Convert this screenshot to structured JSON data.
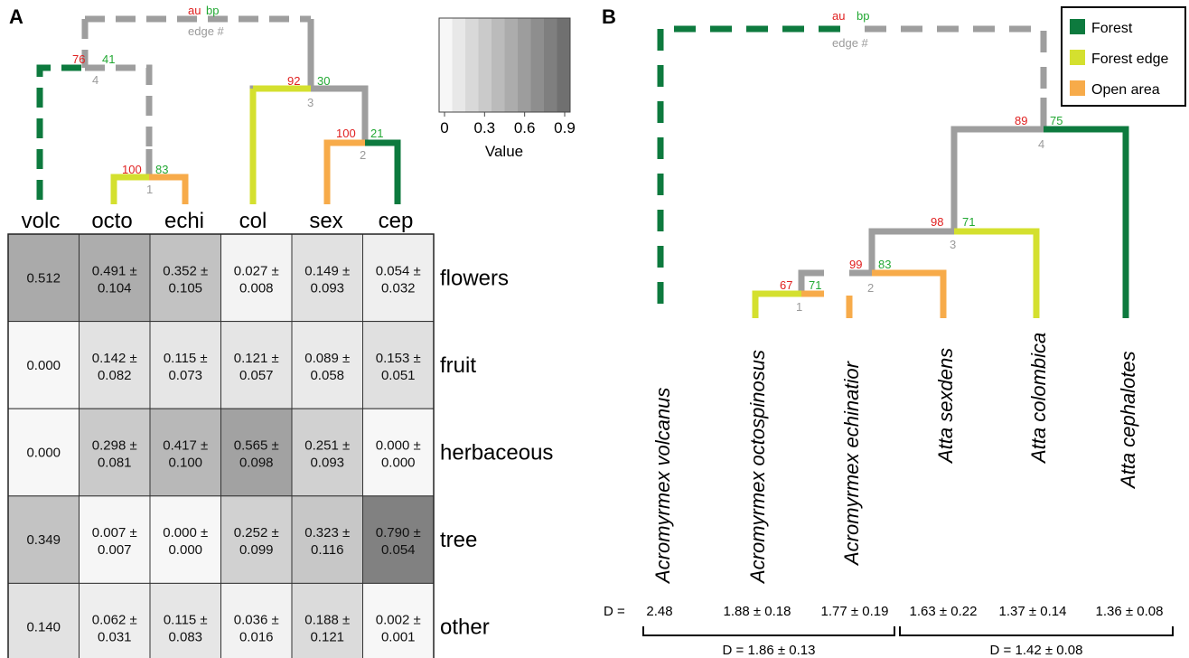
{
  "colors": {
    "forest": "#0d7a3e",
    "forest_edge": "#d4e02f",
    "open_area": "#f7ab4a",
    "unknown": "#9e9e9e",
    "au": "#e02020",
    "bp": "#22a833",
    "edge": "#9a9a9a"
  },
  "panelA": {
    "letter": "A",
    "tips": [
      "volc",
      "octo",
      "echi",
      "col",
      "sex",
      "cep"
    ],
    "header_labels": {
      "au": "au",
      "bp": "bp",
      "edge": "edge #"
    },
    "node_labels": [
      {
        "au": "76",
        "bp": "41",
        "edge": "4"
      },
      {
        "au": "100",
        "bp": "83",
        "edge": "1"
      },
      {
        "au": "92",
        "bp": "30",
        "edge": "3"
      },
      {
        "au": "100",
        "bp": "21",
        "edge": "2"
      }
    ],
    "heatmap": {
      "rows": [
        "flowers",
        "fruit",
        "herbaceous",
        "tree",
        "other"
      ],
      "cells": [
        [
          {
            "mean": "0.512",
            "sd": ""
          },
          {
            "mean": "0.491 ±",
            "sd": "0.104"
          },
          {
            "mean": "0.352 ±",
            "sd": "0.105"
          },
          {
            "mean": "0.027 ±",
            "sd": "0.008"
          },
          {
            "mean": "0.149 ±",
            "sd": "0.093"
          },
          {
            "mean": "0.054 ±",
            "sd": "0.032"
          }
        ],
        [
          {
            "mean": "0.000",
            "sd": ""
          },
          {
            "mean": "0.142 ±",
            "sd": "0.082"
          },
          {
            "mean": "0.115 ±",
            "sd": "0.073"
          },
          {
            "mean": "0.121 ±",
            "sd": "0.057"
          },
          {
            "mean": "0.089 ±",
            "sd": "0.058"
          },
          {
            "mean": "0.153 ±",
            "sd": "0.051"
          }
        ],
        [
          {
            "mean": "0.000",
            "sd": ""
          },
          {
            "mean": "0.298 ±",
            "sd": "0.081"
          },
          {
            "mean": "0.417 ±",
            "sd": "0.100"
          },
          {
            "mean": "0.565 ±",
            "sd": "0.098"
          },
          {
            "mean": "0.251 ±",
            "sd": "0.093"
          },
          {
            "mean": "0.000 ±",
            "sd": "0.000"
          }
        ],
        [
          {
            "mean": "0.349",
            "sd": ""
          },
          {
            "mean": "0.007 ±",
            "sd": "0.007"
          },
          {
            "mean": "0.000 ±",
            "sd": "0.000"
          },
          {
            "mean": "0.252 ±",
            "sd": "0.099"
          },
          {
            "mean": "0.323 ±",
            "sd": "0.116"
          },
          {
            "mean": "0.790 ±",
            "sd": "0.054"
          }
        ],
        [
          {
            "mean": "0.140",
            "sd": ""
          },
          {
            "mean": "0.062 ±",
            "sd": "0.031"
          },
          {
            "mean": "0.115 ±",
            "sd": "0.083"
          },
          {
            "mean": "0.036 ±",
            "sd": "0.016"
          },
          {
            "mean": "0.188 ±",
            "sd": "0.121"
          },
          {
            "mean": "0.002 ±",
            "sd": "0.001"
          }
        ]
      ],
      "values": [
        [
          0.512,
          0.491,
          0.352,
          0.027,
          0.149,
          0.054
        ],
        [
          0.0,
          0.142,
          0.115,
          0.121,
          0.089,
          0.153
        ],
        [
          0.0,
          0.298,
          0.417,
          0.565,
          0.251,
          0.0
        ],
        [
          0.349,
          0.007,
          0.0,
          0.252,
          0.323,
          0.79
        ],
        [
          0.14,
          0.062,
          0.115,
          0.036,
          0.188,
          0.002
        ]
      ]
    },
    "colorbar": {
      "ticks": [
        "0",
        "0.3",
        "0.6",
        "0.9"
      ],
      "label": "Value",
      "min": 0,
      "max": 0.9
    }
  },
  "panelB": {
    "letter": "B",
    "legend": [
      {
        "label": "Forest",
        "color": "#0d7a3e"
      },
      {
        "label": "Forest edge",
        "color": "#d4e02f"
      },
      {
        "label": "Open area",
        "color": "#f7ab4a"
      }
    ],
    "header_labels": {
      "au": "au",
      "bp": "bp",
      "edge": "edge #"
    },
    "node_labels": [
      {
        "au": "89",
        "bp": "75",
        "edge": "4"
      },
      {
        "au": "98",
        "bp": "71",
        "edge": "3"
      },
      {
        "au": "99",
        "bp": "83",
        "edge": "2"
      },
      {
        "au": "67",
        "bp": "71",
        "edge": "1"
      }
    ],
    "species": [
      "Acromyrmex volcanus",
      "Acromyrmex octospinosus",
      "Acromyrmex echinatior",
      "Atta sexdens",
      "Atta colombica",
      "Atta cephalotes"
    ],
    "d_prefix": "D =",
    "d_values": [
      "2.48",
      "1.88 ± 0.18",
      "1.77 ± 0.19",
      "1.63 ± 0.22",
      "1.37 ± 0.14",
      "1.36 ± 0.08"
    ],
    "group_d": [
      "D = 1.86 ± 0.13",
      "D = 1.42 ± 0.08"
    ]
  }
}
